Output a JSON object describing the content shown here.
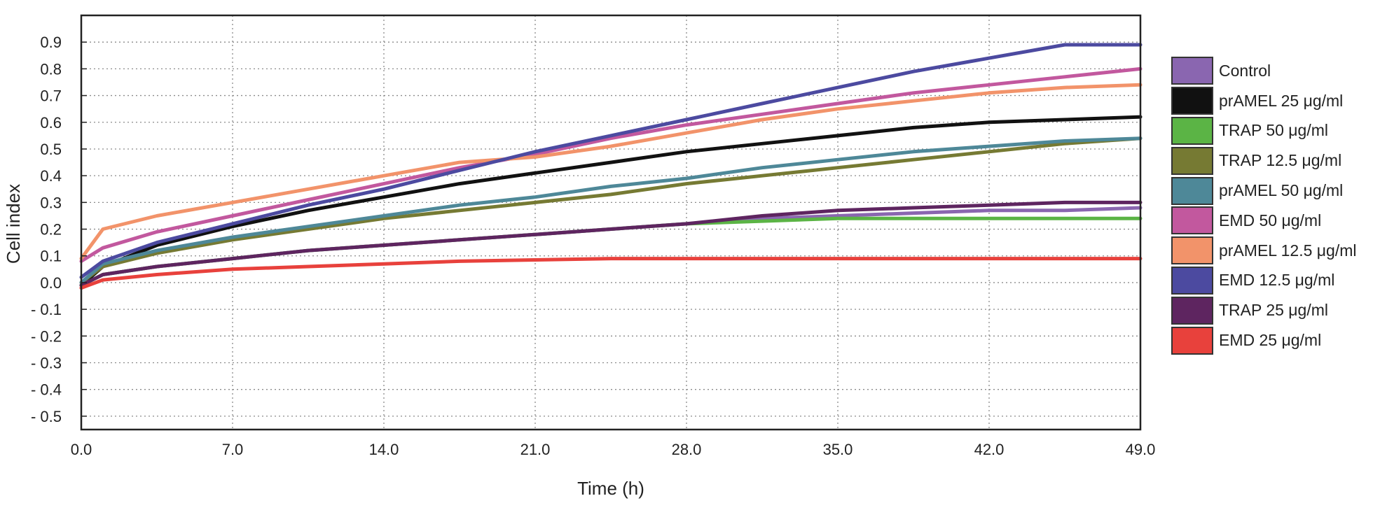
{
  "chart_data": {
    "type": "line",
    "title": "",
    "xlabel": "Time (h)",
    "ylabel": "Cell index",
    "xlim": [
      0,
      49
    ],
    "ylim": [
      -0.55,
      1.0
    ],
    "x_ticks": [
      "0.0",
      "7.0",
      "14.0",
      "21.0",
      "28.0",
      "35.0",
      "42.0",
      "49.0"
    ],
    "y_ticks": [
      "0.9",
      "0.8",
      "0.7",
      "0.6",
      "0.5",
      "0.4",
      "0.3",
      "0.2",
      "0.1",
      "0.0",
      "- 0.1",
      "- 0.2",
      "- 0.3",
      "- 0.4",
      "- 0.5"
    ],
    "grid": true,
    "legend_position": "right",
    "x": [
      0,
      1,
      3.5,
      7,
      10.5,
      14,
      17.5,
      21,
      24.5,
      28,
      31.5,
      35,
      38.5,
      42,
      45.5,
      49
    ],
    "series": [
      {
        "name": "Control",
        "color": "#8a66b0",
        "values": [
          -0.01,
          0.03,
          0.06,
          0.09,
          0.12,
          0.14,
          0.16,
          0.18,
          0.2,
          0.22,
          0.24,
          0.25,
          0.26,
          0.27,
          0.27,
          0.28
        ]
      },
      {
        "name": "prAMEL 25 μg/ml",
        "color": "#111111",
        "values": [
          -0.01,
          0.06,
          0.14,
          0.21,
          0.27,
          0.32,
          0.37,
          0.41,
          0.45,
          0.49,
          0.52,
          0.55,
          0.58,
          0.6,
          0.61,
          0.62
        ]
      },
      {
        "name": "TRAP 50 μg/ml",
        "color": "#5bb445",
        "values": [
          -0.01,
          0.03,
          0.06,
          0.09,
          0.12,
          0.14,
          0.16,
          0.18,
          0.2,
          0.22,
          0.23,
          0.24,
          0.24,
          0.24,
          0.24,
          0.24
        ]
      },
      {
        "name": "TRAP 12.5 μg/ml",
        "color": "#767a33",
        "values": [
          0.0,
          0.06,
          0.11,
          0.16,
          0.2,
          0.24,
          0.27,
          0.3,
          0.33,
          0.37,
          0.4,
          0.43,
          0.46,
          0.49,
          0.52,
          0.54
        ]
      },
      {
        "name": "prAMEL 50 μg/ml",
        "color": "#4e8898",
        "values": [
          0.0,
          0.07,
          0.12,
          0.17,
          0.21,
          0.25,
          0.29,
          0.32,
          0.36,
          0.39,
          0.43,
          0.46,
          0.49,
          0.51,
          0.53,
          0.54
        ]
      },
      {
        "name": "EMD 50 μg/ml",
        "color": "#c2589e",
        "values": [
          0.08,
          0.13,
          0.19,
          0.25,
          0.31,
          0.37,
          0.43,
          0.48,
          0.54,
          0.59,
          0.63,
          0.67,
          0.71,
          0.74,
          0.77,
          0.8
        ]
      },
      {
        "name": "prAMEL 12.5 μg/ml",
        "color": "#f2936a",
        "values": [
          0.09,
          0.2,
          0.25,
          0.3,
          0.35,
          0.4,
          0.45,
          0.47,
          0.51,
          0.56,
          0.61,
          0.65,
          0.68,
          0.71,
          0.73,
          0.74
        ]
      },
      {
        "name": "EMD 12.5 μg/ml",
        "color": "#4c4aa0",
        "values": [
          0.02,
          0.08,
          0.15,
          0.22,
          0.29,
          0.35,
          0.42,
          0.49,
          0.55,
          0.61,
          0.67,
          0.73,
          0.79,
          0.84,
          0.89,
          0.89
        ]
      },
      {
        "name": "TRAP 25 μg/ml",
        "color": "#5e2560",
        "values": [
          -0.01,
          0.03,
          0.06,
          0.09,
          0.12,
          0.14,
          0.16,
          0.18,
          0.2,
          0.22,
          0.25,
          0.27,
          0.28,
          0.29,
          0.3,
          0.3
        ]
      },
      {
        "name": "EMD 25 μg/ml",
        "color": "#e8413c",
        "values": [
          -0.02,
          0.01,
          0.03,
          0.05,
          0.06,
          0.07,
          0.08,
          0.085,
          0.09,
          0.09,
          0.09,
          0.09,
          0.09,
          0.09,
          0.09,
          0.09
        ]
      }
    ]
  }
}
